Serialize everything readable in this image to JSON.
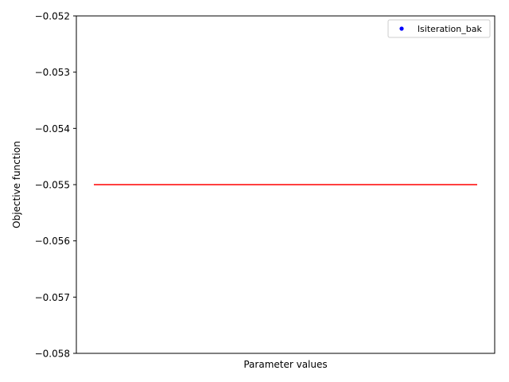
{
  "chart_data": {
    "type": "line",
    "title": "",
    "xlabel": "Parameter values",
    "ylabel": "Objective function",
    "ylim": [
      -0.058,
      -0.052
    ],
    "yticks": [
      -0.058,
      -0.057,
      -0.056,
      -0.055,
      -0.054,
      -0.053,
      -0.052
    ],
    "ytick_labels": [
      "−0.058",
      "−0.057",
      "−0.056",
      "−0.055",
      "−0.054",
      "−0.053",
      "−0.052"
    ],
    "x_ticks_shown": false,
    "grid": false,
    "legend": {
      "placement": "top-right",
      "entries": [
        {
          "label": "lsiteration_bak",
          "marker": "dot",
          "color": "#0000ff"
        }
      ]
    },
    "series": [
      {
        "name": "",
        "style": "line",
        "color": "#ff0000",
        "x": [
          0,
          1
        ],
        "y": [
          -0.055,
          -0.055
        ]
      },
      {
        "name": "lsiteration_bak",
        "style": "dot",
        "color": "#0000ff",
        "x": [],
        "y": []
      }
    ]
  }
}
